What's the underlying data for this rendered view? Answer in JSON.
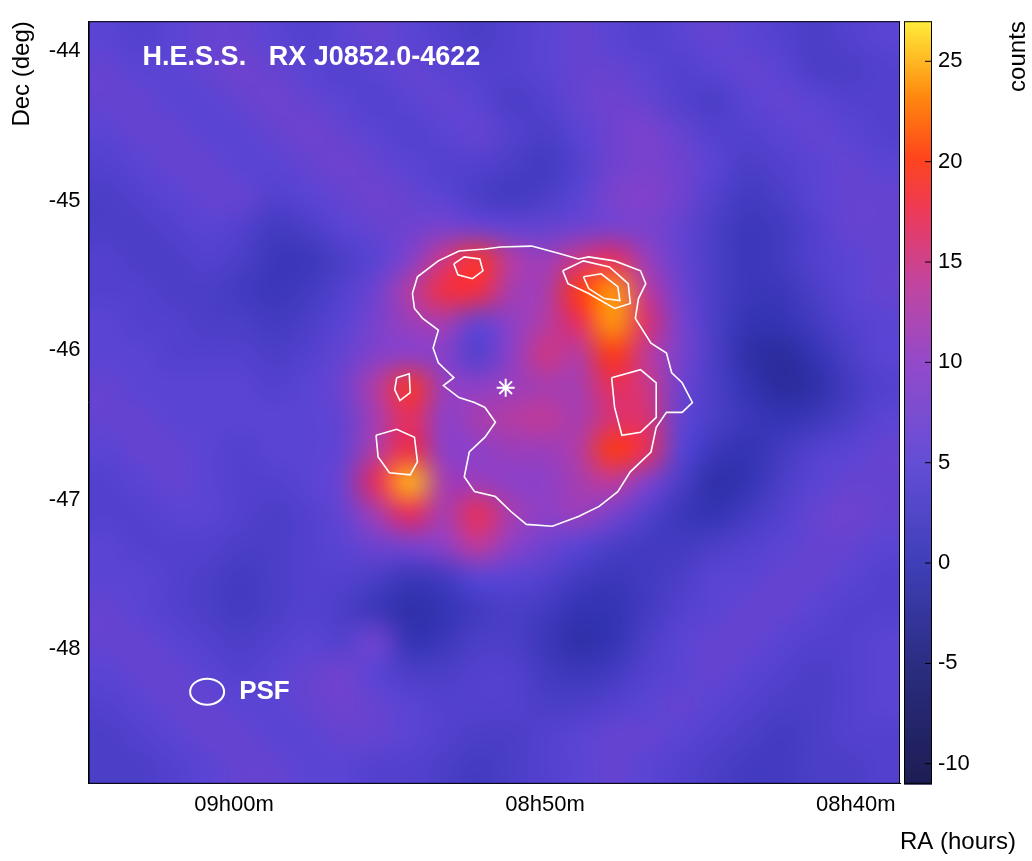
{
  "chart_data": {
    "type": "heatmap",
    "title": "H.E.S.S.   RX J0852.0-4622",
    "x_label": "RA (hours)",
    "y_label": "Dec (deg)",
    "xlim": [
      9.078,
      8.643
    ],
    "ylim": [
      -48.9,
      -43.8
    ],
    "xticks": [
      {
        "value": 9.0,
        "label": "09h00m"
      },
      {
        "value": 8.8333,
        "label": "08h50m"
      },
      {
        "value": 8.6667,
        "label": "08h40m"
      }
    ],
    "yticks": [
      -48,
      -47,
      -46,
      -45,
      -44
    ],
    "grid": false,
    "x": [
      9.0689,
      9.0508,
      9.0327,
      9.0146,
      8.9964,
      8.9783,
      8.9602,
      8.9421,
      8.9239,
      8.9058,
      8.8877,
      8.8696,
      8.8514,
      8.8333,
      8.8152,
      8.7971,
      8.7789,
      8.7608,
      8.7427,
      8.7246,
      8.7064,
      8.6883,
      8.6702,
      8.6521
    ],
    "y": [
      -43.906,
      -44.119,
      -44.331,
      -44.544,
      -44.756,
      -44.969,
      -45.181,
      -45.394,
      -45.606,
      -45.819,
      -46.031,
      -46.244,
      -46.456,
      -46.669,
      -46.881,
      -47.094,
      -47.306,
      -47.519,
      -47.731,
      -47.944,
      -48.156,
      -48.369,
      -48.581,
      -48.794
    ],
    "z": [
      [
        5,
        4,
        5,
        6,
        6,
        5,
        4,
        5,
        6,
        5,
        4,
        3,
        4,
        5,
        6,
        5,
        4,
        5,
        6,
        5,
        4,
        3,
        4,
        5
      ],
      [
        6,
        5,
        5,
        6,
        7,
        6,
        5,
        4,
        5,
        6,
        5,
        4,
        4,
        5,
        6,
        6,
        5,
        4,
        5,
        6,
        5,
        3,
        3,
        4
      ],
      [
        6,
        6,
        5,
        5,
        6,
        7,
        6,
        5,
        4,
        5,
        6,
        5,
        3,
        4,
        6,
        7,
        6,
        4,
        3,
        5,
        6,
        5,
        4,
        4
      ],
      [
        5,
        6,
        6,
        5,
        5,
        6,
        7,
        6,
        5,
        4,
        5,
        6,
        4,
        3,
        5,
        7,
        8,
        6,
        4,
        4,
        5,
        6,
        5,
        4
      ],
      [
        4,
        5,
        6,
        6,
        5,
        5,
        6,
        7,
        6,
        5,
        4,
        4,
        3,
        2,
        4,
        7,
        8,
        7,
        5,
        3,
        4,
        5,
        6,
        5
      ],
      [
        3,
        4,
        5,
        6,
        6,
        4,
        5,
        6,
        7,
        6,
        5,
        3,
        2,
        3,
        5,
        8,
        9,
        7,
        4,
        2,
        3,
        5,
        6,
        6
      ],
      [
        3,
        3,
        4,
        5,
        4,
        2,
        3,
        5,
        6,
        7,
        8,
        7,
        6,
        6,
        7,
        8,
        8,
        6,
        3,
        1,
        2,
        4,
        6,
        6
      ],
      [
        4,
        3,
        3,
        4,
        3,
        1,
        1,
        3,
        5,
        9,
        15,
        19,
        13,
        11,
        15,
        17,
        11,
        6,
        3,
        1,
        2,
        4,
        5,
        6
      ],
      [
        4,
        4,
        3,
        3,
        2,
        1,
        2,
        4,
        7,
        13,
        18,
        18,
        12,
        12,
        20,
        24,
        14,
        7,
        3,
        1,
        1,
        3,
        5,
        6
      ],
      [
        5,
        4,
        4,
        3,
        3,
        2,
        3,
        5,
        8,
        11,
        12,
        6,
        10,
        13,
        17,
        24,
        16,
        8,
        3,
        0,
        0,
        2,
        4,
        5
      ],
      [
        5,
        5,
        4,
        4,
        4,
        3,
        4,
        6,
        9,
        10,
        9,
        4,
        10,
        15,
        13,
        20,
        14,
        8,
        3,
        -1,
        -2,
        0,
        3,
        5
      ],
      [
        6,
        5,
        5,
        5,
        5,
        4,
        5,
        7,
        13,
        19,
        11,
        10,
        11,
        12,
        12,
        17,
        15,
        7,
        3,
        0,
        -2,
        -1,
        2,
        4
      ],
      [
        6,
        6,
        5,
        5,
        5,
        5,
        5,
        6,
        12,
        17,
        10,
        12,
        13,
        14,
        12,
        16,
        16,
        6,
        3,
        1,
        0,
        1,
        3,
        5
      ],
      [
        5,
        6,
        6,
        5,
        4,
        5,
        5,
        6,
        13,
        18,
        10,
        10,
        11,
        11,
        13,
        20,
        17,
        5,
        1,
        0,
        2,
        4,
        5,
        6
      ],
      [
        4,
        5,
        6,
        5,
        4,
        4,
        5,
        7,
        17,
        25,
        12,
        11,
        10,
        10,
        12,
        14,
        9,
        3,
        -1,
        0,
        3,
        5,
        6,
        6
      ],
      [
        4,
        4,
        5,
        5,
        4,
        3,
        4,
        6,
        12,
        17,
        12,
        17,
        12,
        10,
        11,
        8,
        4,
        1,
        0,
        2,
        4,
        6,
        7,
        6
      ],
      [
        5,
        4,
        4,
        4,
        3,
        3,
        4,
        5,
        7,
        8,
        10,
        14,
        10,
        7,
        5,
        3,
        2,
        2,
        3,
        4,
        5,
        6,
        6,
        5
      ],
      [
        5,
        5,
        4,
        3,
        2,
        3,
        4,
        4,
        3,
        1,
        2,
        5,
        5,
        4,
        2,
        1,
        2,
        3,
        5,
        5,
        6,
        6,
        5,
        4
      ],
      [
        6,
        5,
        4,
        3,
        2,
        3,
        4,
        3,
        1,
        -1,
        0,
        2,
        3,
        2,
        0,
        0,
        2,
        4,
        5,
        6,
        6,
        5,
        4,
        4
      ],
      [
        6,
        6,
        5,
        4,
        3,
        4,
        5,
        4,
        7,
        0,
        1,
        3,
        3,
        1,
        -1,
        0,
        3,
        5,
        6,
        6,
        5,
        4,
        4,
        5
      ],
      [
        5,
        6,
        6,
        5,
        4,
        5,
        6,
        7,
        5,
        3,
        3,
        4,
        4,
        2,
        1,
        2,
        4,
        5,
        6,
        5,
        4,
        3,
        4,
        5
      ],
      [
        4,
        5,
        6,
        6,
        5,
        5,
        6,
        7,
        6,
        5,
        4,
        4,
        4,
        3,
        3,
        4,
        5,
        6,
        5,
        4,
        3,
        3,
        4,
        5
      ],
      [
        3,
        4,
        5,
        6,
        6,
        5,
        5,
        6,
        6,
        5,
        4,
        3,
        3,
        4,
        5,
        6,
        6,
        5,
        4,
        3,
        2,
        3,
        4,
        4
      ],
      [
        3,
        3,
        4,
        5,
        6,
        6,
        5,
        5,
        4,
        4,
        3,
        2,
        3,
        4,
        5,
        6,
        5,
        4,
        3,
        2,
        2,
        3,
        3,
        4
      ]
    ],
    "colorbar": {
      "label": "counts",
      "range": [
        -11,
        27
      ],
      "ticks": [
        -10,
        -5,
        0,
        5,
        10,
        15,
        20,
        25
      ]
    },
    "contours": {
      "color": "#ffffff",
      "lines": [
        {
          "x": [
            8.9044,
            8.9017,
            8.8905,
            8.8794,
            8.8655,
            8.8572,
            8.8405,
            8.8266,
            8.8154,
            8.8099,
            8.796,
            8.7821,
            8.7793,
            8.7832,
            8.7849,
            8.7765,
            8.7682,
            8.7654,
            8.7598,
            8.7543,
            8.7598,
            8.7682,
            8.7737,
            8.7765,
            8.7876,
            8.7943,
            8.8043,
            8.8154,
            8.8294,
            8.8433,
            8.8516,
            8.8599,
            8.8711,
            8.8766,
            8.8739,
            8.8655,
            8.8599,
            8.8655,
            8.8711,
            8.8794,
            8.8878,
            8.8822,
            8.8905,
            8.8933,
            8.8905,
            8.8989,
            8.9033,
            8.9044
          ],
          "y": [
            -45.621,
            -45.509,
            -45.403,
            -45.337,
            -45.323,
            -45.31,
            -45.304,
            -45.35,
            -45.39,
            -45.376,
            -45.403,
            -45.469,
            -45.555,
            -45.655,
            -45.787,
            -45.953,
            -46.019,
            -46.151,
            -46.218,
            -46.35,
            -46.416,
            -46.416,
            -46.516,
            -46.681,
            -46.814,
            -46.946,
            -47.045,
            -47.112,
            -47.178,
            -47.165,
            -47.079,
            -46.979,
            -46.946,
            -46.847,
            -46.681,
            -46.582,
            -46.482,
            -46.383,
            -46.35,
            -46.317,
            -46.237,
            -46.184,
            -46.085,
            -45.986,
            -45.866,
            -45.787,
            -45.721,
            -45.621
          ]
        },
        {
          "x": [
            8.8822,
            8.8766,
            8.8683,
            8.8666,
            8.8722,
            8.88,
            8.8822
          ],
          "y": [
            -45.423,
            -45.376,
            -45.39,
            -45.469,
            -45.522,
            -45.496,
            -45.423
          ]
        },
        {
          "x": [
            8.8238,
            8.8127,
            8.7988,
            8.7887,
            8.7876,
            8.796,
            8.8099,
            8.821,
            8.8238
          ],
          "y": [
            -45.469,
            -45.403,
            -45.443,
            -45.555,
            -45.688,
            -45.721,
            -45.621,
            -45.555,
            -45.469
          ]
        },
        {
          "x": [
            8.8127,
            8.8032,
            8.7943,
            8.7932,
            8.8015,
            8.8099,
            8.8127
          ],
          "y": [
            -45.509,
            -45.489,
            -45.575,
            -45.668,
            -45.655,
            -45.588,
            -45.509
          ]
        },
        {
          "x": [
            8.9239,
            8.9128,
            8.9033,
            8.9017,
            8.9056,
            8.9167,
            8.9228,
            8.9239
          ],
          "y": [
            -46.569,
            -46.529,
            -46.582,
            -46.747,
            -46.834,
            -46.82,
            -46.714,
            -46.569
          ]
        },
        {
          "x": [
            8.7976,
            8.7821,
            8.7737,
            8.7737,
            8.7821,
            8.7921,
            8.796,
            8.7976
          ],
          "y": [
            -46.184,
            -46.131,
            -46.218,
            -46.449,
            -46.549,
            -46.569,
            -46.383,
            -46.184
          ]
        },
        {
          "x": [
            8.9128,
            8.9061,
            8.9056,
            8.9111,
            8.9139,
            8.9128
          ],
          "y": [
            -46.184,
            -46.158,
            -46.284,
            -46.337,
            -46.264,
            -46.184
          ]
        }
      ]
    },
    "points": {
      "marker": "star",
      "color": "#ffffff",
      "x": [
        8.8544
      ],
      "y": [
        -46.251
      ]
    },
    "annotations": [
      {
        "text": "PSF",
        "x": 8.9973,
        "y": -48.284
      }
    ]
  }
}
